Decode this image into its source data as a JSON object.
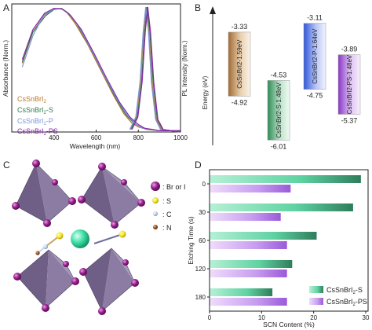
{
  "panels": {
    "a": {
      "letter": "A"
    },
    "b": {
      "letter": "B"
    },
    "c": {
      "letter": "C"
    },
    "d": {
      "letter": "D"
    }
  },
  "chart_data": [
    {
      "panel": "A",
      "type": "line",
      "xlabel": "Wavelength (nm)",
      "ylabel_left": "Absorbance (Norm.)",
      "ylabel_right": "PL Intensity (Norm.)",
      "xlim": [
        200,
        1000
      ],
      "xticks": [
        400,
        600,
        800,
        1000
      ],
      "ylim": [
        0,
        1
      ],
      "series": [
        {
          "name": "CsSnBrI2",
          "color": "#b9782e",
          "absorbance": [
            [
              250,
              0.55
            ],
            [
              300,
              0.8
            ],
            [
              360,
              0.95
            ],
            [
              400,
              0.985
            ],
            [
              430,
              0.99
            ],
            [
              460,
              0.96
            ],
            [
              500,
              0.87
            ],
            [
              560,
              0.7
            ],
            [
              620,
              0.5
            ],
            [
              680,
              0.3
            ],
            [
              730,
              0.15
            ],
            [
              770,
              0.07
            ],
            [
              800,
              0.04
            ],
            [
              840,
              0.02
            ],
            [
              900,
              0.01
            ],
            [
              1000,
              0.01
            ]
          ],
          "pl": [
            [
              760,
              0.02
            ],
            [
              790,
              0.12
            ],
            [
              810,
              0.4
            ],
            [
              825,
              0.8
            ],
            [
              838,
              1.0
            ],
            [
              850,
              0.8
            ],
            [
              865,
              0.4
            ],
            [
              885,
              0.1
            ],
            [
              910,
              0.02
            ],
            [
              1000,
              0.0
            ]
          ]
        },
        {
          "name": "CsSnBrI2-S",
          "color": "#2f7a4f",
          "absorbance": [
            [
              250,
              0.56
            ],
            [
              300,
              0.8
            ],
            [
              360,
              0.93
            ],
            [
              400,
              0.98
            ],
            [
              435,
              0.99
            ],
            [
              470,
              0.95
            ],
            [
              510,
              0.86
            ],
            [
              570,
              0.68
            ],
            [
              630,
              0.48
            ],
            [
              690,
              0.28
            ],
            [
              740,
              0.14
            ],
            [
              780,
              0.07
            ],
            [
              810,
              0.04
            ],
            [
              850,
              0.02
            ],
            [
              900,
              0.01
            ],
            [
              1000,
              0.01
            ]
          ],
          "pl": [
            [
              765,
              0.02
            ],
            [
              795,
              0.12
            ],
            [
              815,
              0.4
            ],
            [
              830,
              0.8
            ],
            [
              842,
              1.0
            ],
            [
              855,
              0.8
            ],
            [
              870,
              0.4
            ],
            [
              890,
              0.1
            ],
            [
              915,
              0.02
            ],
            [
              1000,
              0.0
            ]
          ]
        },
        {
          "name": "CsSnBrI2-P",
          "color": "#7e95d8",
          "absorbance": [
            [
              250,
              0.52
            ],
            [
              300,
              0.77
            ],
            [
              350,
              0.93
            ],
            [
              395,
              0.98
            ],
            [
              430,
              0.99
            ],
            [
              470,
              0.95
            ],
            [
              520,
              0.84
            ],
            [
              580,
              0.65
            ],
            [
              640,
              0.45
            ],
            [
              700,
              0.26
            ],
            [
              750,
              0.13
            ],
            [
              790,
              0.06
            ],
            [
              820,
              0.03
            ],
            [
              860,
              0.02
            ],
            [
              900,
              0.01
            ],
            [
              1000,
              0.01
            ]
          ],
          "pl": [
            [
              760,
              0.02
            ],
            [
              788,
              0.12
            ],
            [
              808,
              0.4
            ],
            [
              823,
              0.8
            ],
            [
              835,
              1.0
            ],
            [
              848,
              0.8
            ],
            [
              862,
              0.4
            ],
            [
              882,
              0.1
            ],
            [
              905,
              0.02
            ],
            [
              1000,
              0.0
            ]
          ]
        },
        {
          "name": "CsSnBrI2-PS",
          "color": "#8a2aa8",
          "absorbance": [
            [
              250,
              0.58
            ],
            [
              300,
              0.82
            ],
            [
              355,
              0.95
            ],
            [
              400,
              0.99
            ],
            [
              440,
              0.985
            ],
            [
              480,
              0.93
            ],
            [
              530,
              0.82
            ],
            [
              590,
              0.63
            ],
            [
              650,
              0.43
            ],
            [
              710,
              0.24
            ],
            [
              760,
              0.12
            ],
            [
              800,
              0.06
            ],
            [
              830,
              0.03
            ],
            [
              870,
              0.02
            ],
            [
              900,
              0.01
            ],
            [
              1000,
              0.01
            ]
          ],
          "pl": [
            [
              770,
              0.02
            ],
            [
              798,
              0.12
            ],
            [
              818,
              0.4
            ],
            [
              833,
              0.8
            ],
            [
              845,
              1.0
            ],
            [
              858,
              0.8
            ],
            [
              873,
              0.4
            ],
            [
              893,
              0.1
            ],
            [
              918,
              0.02
            ],
            [
              1000,
              0.0
            ]
          ]
        }
      ]
    },
    {
      "panel": "B",
      "type": "bar",
      "ylabel": "Energy (eV)",
      "bands": [
        {
          "name": "CsSnBrI2-1.59eV",
          "cbm_label": "-3.33",
          "vbm_label": "-4.92",
          "cbm": -3.33,
          "vbm": -4.92,
          "color": "#b9864e"
        },
        {
          "name": "CsSnBrI2-S-1.48eV",
          "cbm_label": "-4.53",
          "vbm_label": "-6.01",
          "cbm": -4.53,
          "vbm": -6.01,
          "color": "#4f9a6b"
        },
        {
          "name": "CsSnBrI2-P-1.64eV",
          "cbm_label": "-3.11",
          "vbm_label": "-4.75",
          "cbm": -3.11,
          "vbm": -4.75,
          "color": "#4f6ee0"
        },
        {
          "name": "CsSnBrI2-PS-1.48eV",
          "cbm_label": "-3.89",
          "vbm_label": "-5.37",
          "cbm": -3.89,
          "vbm": -5.37,
          "color": "#a45bd8"
        }
      ]
    },
    {
      "panel": "D",
      "type": "bar",
      "orientation": "horizontal",
      "xlabel": "SCN Content (%)",
      "ylabel": "Etching Time (s)",
      "categories": [
        "0",
        "30",
        "60",
        "120",
        "180"
      ],
      "xlim": [
        0,
        30
      ],
      "xticks": [
        0,
        10,
        20,
        30
      ],
      "series": [
        {
          "name": "CsSnBrI2-S",
          "color": "#3fc58f",
          "values": [
            29.0,
            27.5,
            20.5,
            15.8,
            12.0
          ]
        },
        {
          "name": "CsSnBrI2-PS",
          "color": "#b77ee8",
          "values": [
            15.5,
            13.6,
            14.8,
            14.8,
            14.8
          ]
        }
      ]
    }
  ],
  "structure": {
    "legend": [
      {
        "label": ": Br or I",
        "color": "#8c1a84",
        "icon": "br-or-i-atom-icon"
      },
      {
        "label": ": S",
        "color": "#f2e21e",
        "icon": "sulfur-atom-icon"
      },
      {
        "label": ": C",
        "color": "#9bb3d8",
        "icon": "carbon-atom-icon"
      },
      {
        "label": ": N",
        "color": "#8a4a1e",
        "icon": "nitrogen-atom-icon"
      }
    ]
  }
}
